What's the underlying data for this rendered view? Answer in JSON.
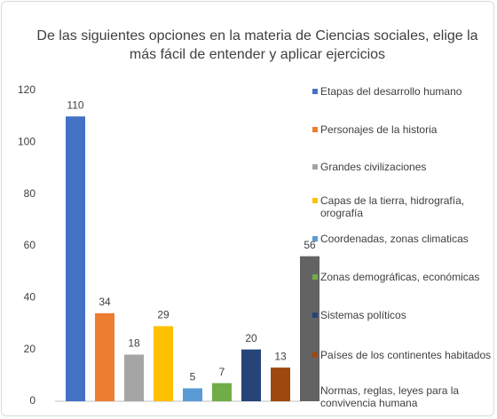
{
  "chart_data": {
    "type": "bar",
    "title": "De las siguientes opciones en la materia de Ciencias sociales, elige la más fácil de entender y aplicar ejercicios",
    "categories": [
      "Etapas del desarrollo humano",
      "Personajes de la historia",
      "Grandes civilizaciones",
      "Capas de la tierra, hidrografía, orografía",
      "Coordenadas, zonas climaticas",
      "Zonas demográficas, económicas",
      "Sistemas políticos",
      "Países de los continentes habitados",
      "Normas, reglas, leyes para la convivencia humana"
    ],
    "values": [
      110,
      34,
      18,
      29,
      5,
      7,
      20,
      13,
      56
    ],
    "colors": [
      "#4472c4",
      "#ed7d31",
      "#a5a5a5",
      "#ffc000",
      "#5b9bd5",
      "#70ad47",
      "#264478",
      "#9e480e",
      "#636363"
    ],
    "ylim": [
      0,
      120
    ],
    "yticks": [
      0,
      20,
      40,
      60,
      80,
      100,
      120
    ],
    "grid": false,
    "legend": "right"
  }
}
